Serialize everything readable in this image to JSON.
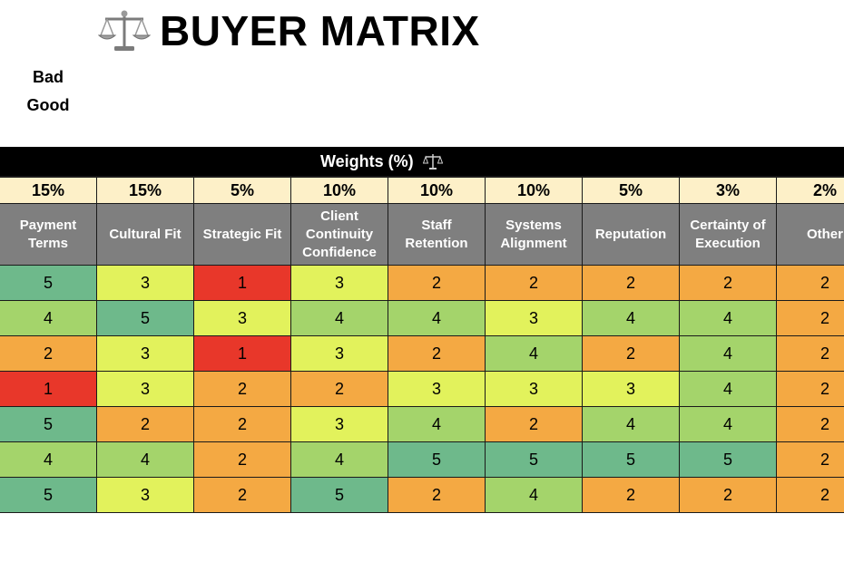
{
  "title": {
    "text": "BUYER MATRIX",
    "icon": "scales-icon"
  },
  "legend": {
    "bad": "Bad",
    "good": "Good"
  },
  "weights_header": {
    "label": "Weights (%)",
    "icon": "scales-icon"
  },
  "colors": {
    "score_1": "#e8372a",
    "score_2": "#f4a943",
    "score_3": "#e2f25c",
    "score_4": "#a4d46b",
    "score_5": "#6eb98b"
  },
  "columns": [
    {
      "weight": "15%",
      "label": "Payment Terms"
    },
    {
      "weight": "15%",
      "label": "Cultural Fit"
    },
    {
      "weight": "5%",
      "label": "Strategic Fit"
    },
    {
      "weight": "10%",
      "label": "Client Continuity Confidence"
    },
    {
      "weight": "10%",
      "label": "Staff Retention"
    },
    {
      "weight": "10%",
      "label": "Systems Alignment"
    },
    {
      "weight": "5%",
      "label": "Reputation"
    },
    {
      "weight": "3%",
      "label": "Certainty of Execution"
    },
    {
      "weight": "2%",
      "label": "Other"
    }
  ],
  "rows": [
    [
      5,
      3,
      1,
      3,
      2,
      2,
      2,
      2,
      2
    ],
    [
      4,
      5,
      3,
      4,
      4,
      3,
      4,
      4,
      2
    ],
    [
      2,
      3,
      1,
      3,
      2,
      4,
      2,
      4,
      2
    ],
    [
      1,
      3,
      2,
      2,
      3,
      3,
      3,
      4,
      2
    ],
    [
      5,
      2,
      2,
      3,
      4,
      2,
      4,
      4,
      2
    ],
    [
      4,
      4,
      2,
      4,
      5,
      5,
      5,
      5,
      2
    ],
    [
      5,
      3,
      2,
      5,
      2,
      4,
      2,
      2,
      2
    ]
  ]
}
